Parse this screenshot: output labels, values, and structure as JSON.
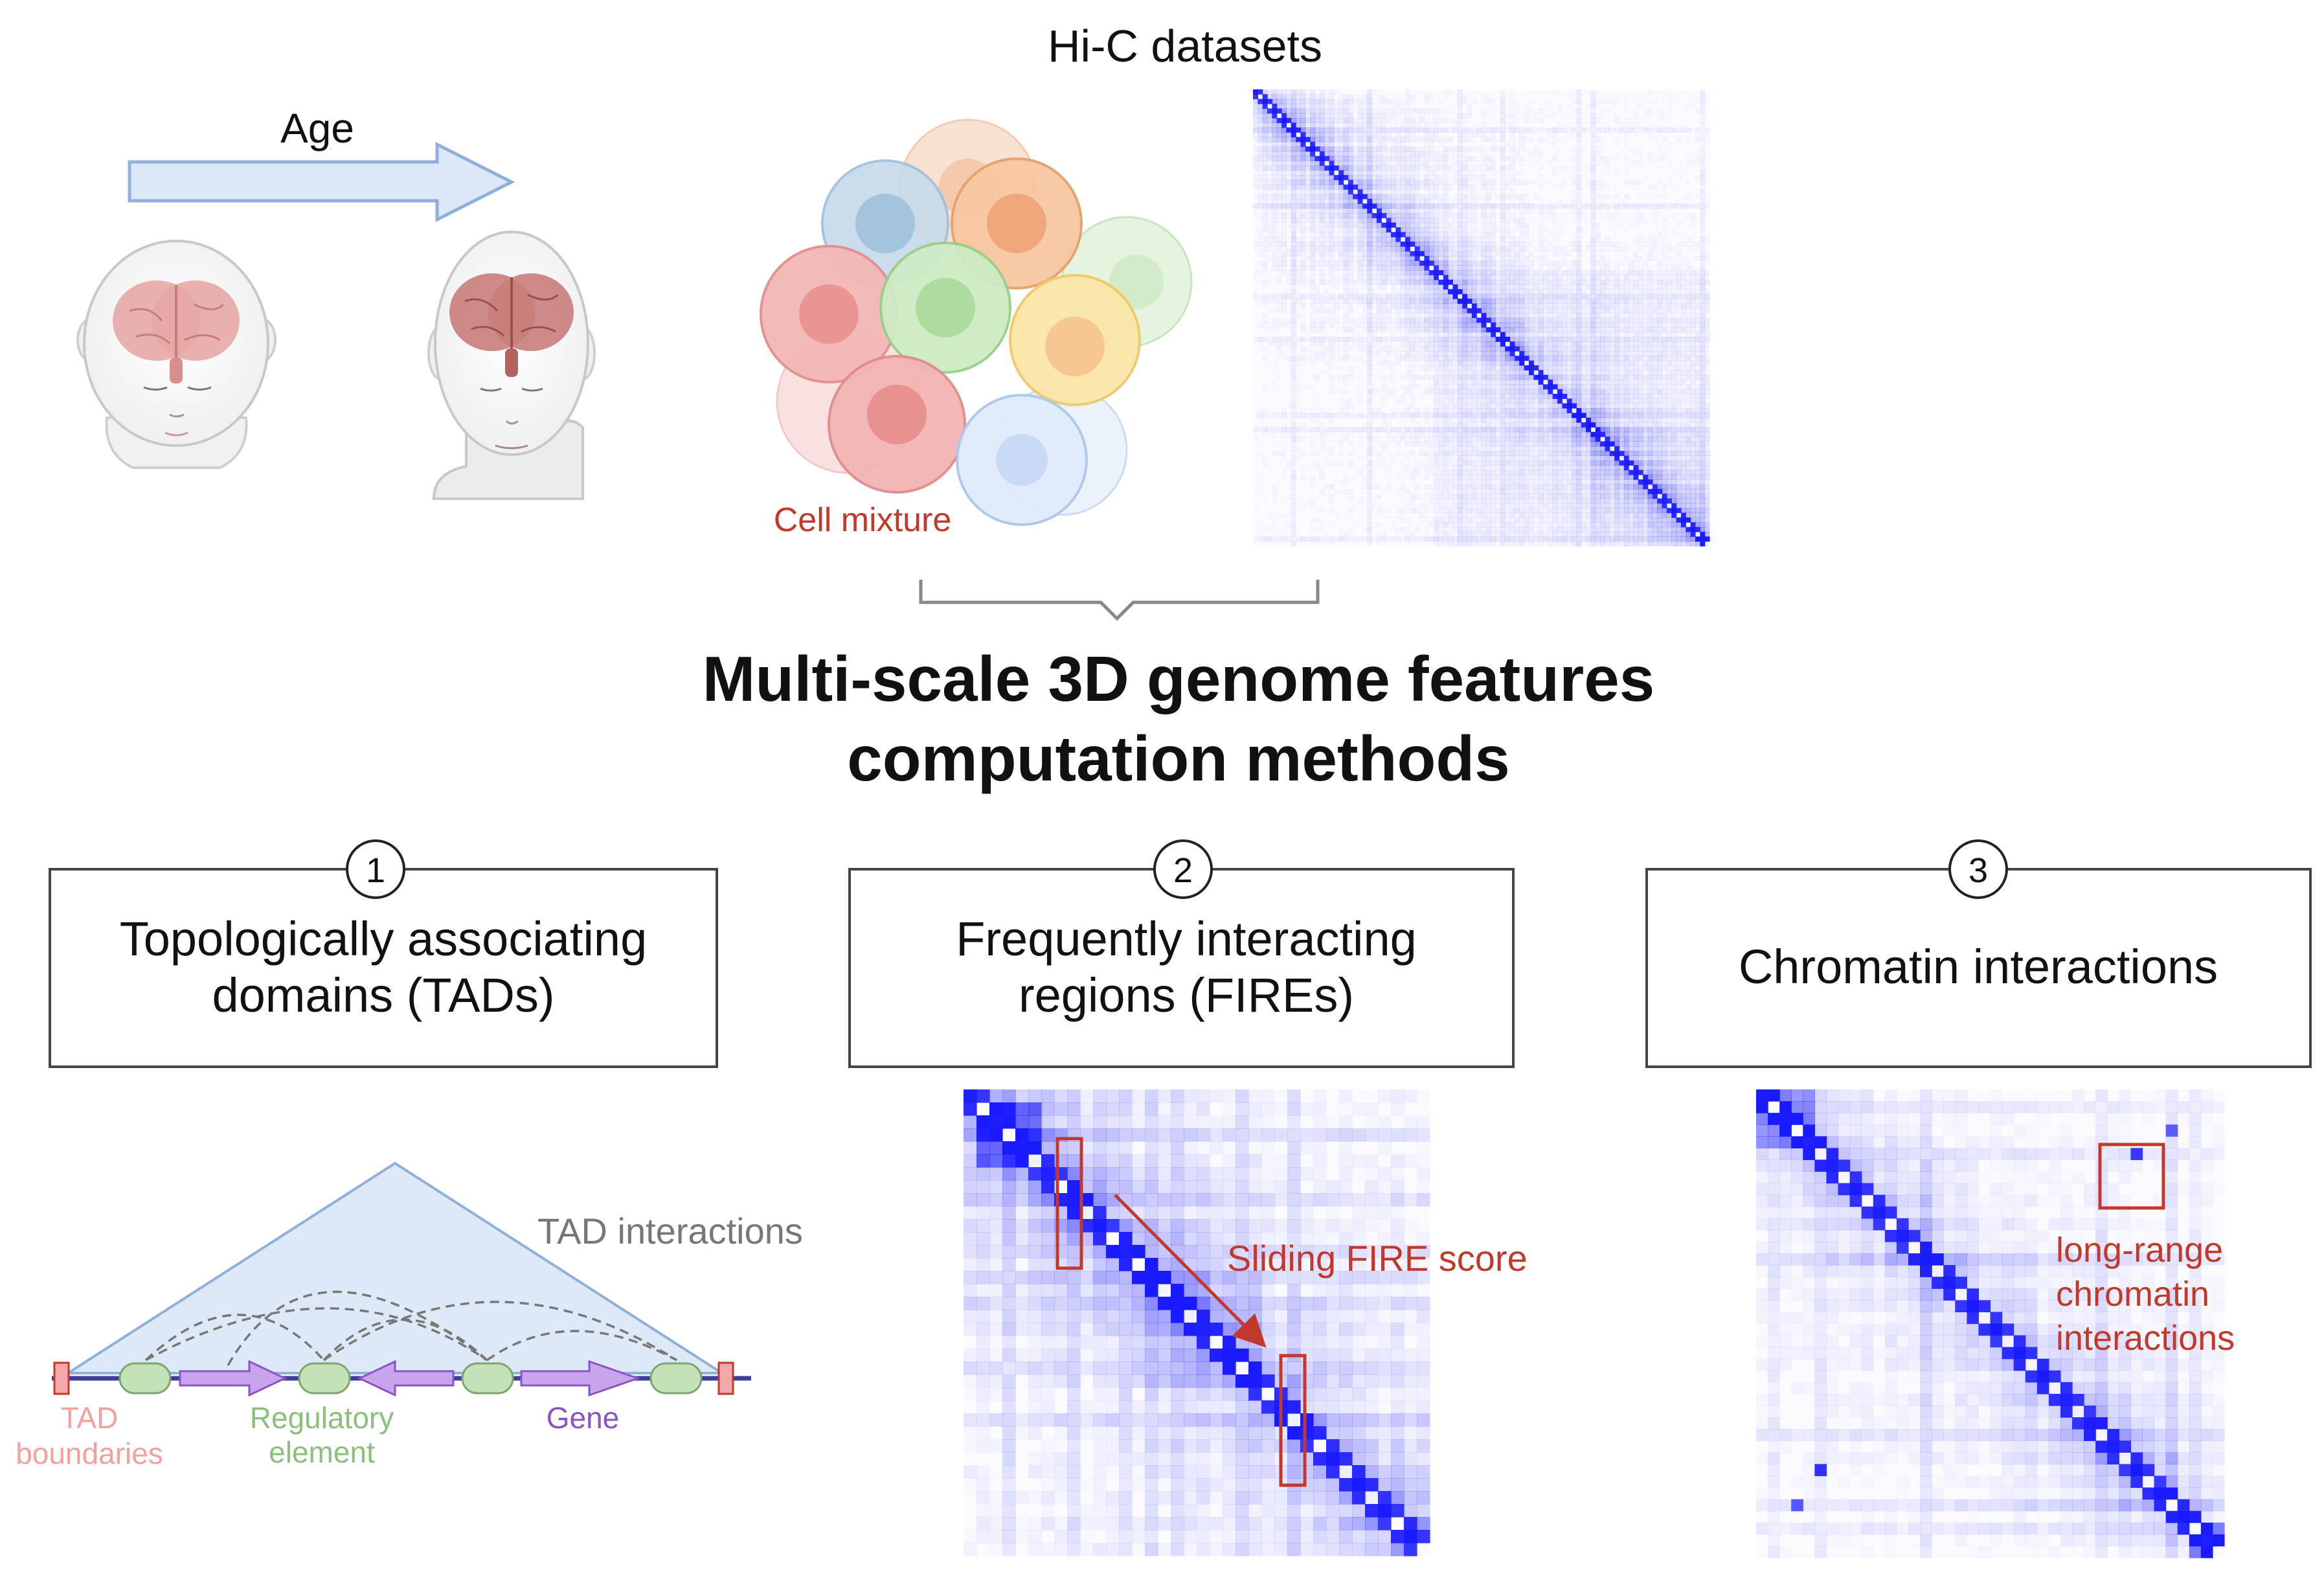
{
  "top": {
    "age_label": "Age",
    "hic_label": "Hi-C datasets",
    "cell_mixture_label": "Cell mixture"
  },
  "main_title": {
    "line1": "Multi-scale 3D genome features",
    "line2": "computation methods"
  },
  "methods": [
    {
      "number": "1",
      "line1": "Topologically associating",
      "line2": "domains (TADs)"
    },
    {
      "number": "2",
      "line1": "Frequently interacting",
      "line2": "regions (FIREs)"
    },
    {
      "number": "3",
      "line1": "Chromatin interactions",
      "line2": ""
    }
  ],
  "tad_panel": {
    "interactions_label": "TAD interactions",
    "boundaries_line1": "TAD",
    "boundaries_line2": "boundaries",
    "regulatory_line1": "Regulatory",
    "regulatory_line2": "element",
    "gene_label": "Gene"
  },
  "fire_panel": {
    "score_label": "Sliding FIRE score"
  },
  "chromatin_panel": {
    "line1": "long-range",
    "line2": "chromatin",
    "line3": "interactions"
  },
  "colors": {
    "heatmap": "#1a1aff",
    "annotation_red": "#c0392b",
    "arrow_fill": "#dce8f7",
    "arrow_stroke": "#8fb0da",
    "box_stroke": "#444444",
    "gene_purple": "#b98ce0",
    "reg_green": "#b9dcae"
  }
}
